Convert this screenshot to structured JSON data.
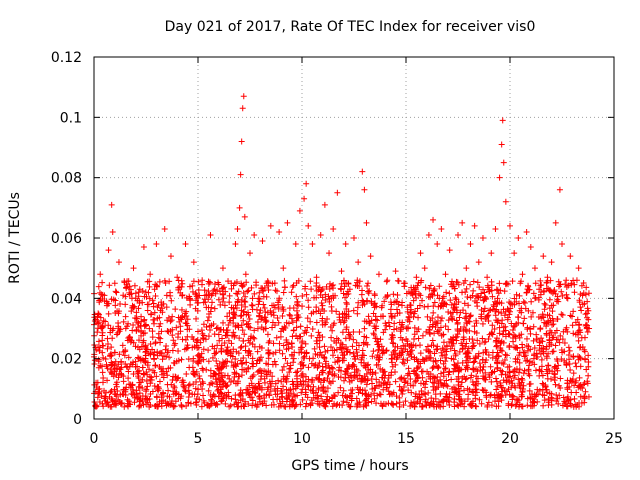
{
  "chart_data": {
    "type": "scatter",
    "title": "Day 021 of 2017, Rate Of TEC Index for receiver vis0",
    "xlabel": "GPS time / hours",
    "ylabel": "ROTI / TECUs",
    "xlim": [
      0,
      25
    ],
    "ylim": [
      0,
      0.12
    ],
    "xticks": [
      0,
      5,
      10,
      15,
      20,
      25
    ],
    "xtick_labels": [
      "0",
      "5",
      "10",
      "15",
      "20",
      "25"
    ],
    "yticks": [
      0,
      0.02,
      0.04,
      0.06,
      0.08,
      0.1,
      0.12
    ],
    "ytick_labels": [
      "0",
      "0.02",
      "0.04",
      "0.06",
      "0.08",
      "0.1",
      "0.12"
    ],
    "grid": true,
    "marker": "+",
    "color": "#ff0000",
    "series": [
      {
        "name": "ROTI",
        "points": [
          [
            0.1,
            0.012
          ],
          [
            0.2,
            0.035
          ],
          [
            0.3,
            0.048
          ],
          [
            0.4,
            0.022
          ],
          [
            0.5,
            0.041
          ],
          [
            0.6,
            0.018
          ],
          [
            0.7,
            0.056
          ],
          [
            0.8,
            0.03
          ],
          [
            0.85,
            0.071
          ],
          [
            0.9,
            0.062
          ],
          [
            1.0,
            0.045
          ],
          [
            1.1,
            0.028
          ],
          [
            1.2,
            0.052
          ],
          [
            1.3,
            0.015
          ],
          [
            1.5,
            0.038
          ],
          [
            1.6,
            0.044
          ],
          [
            1.8,
            0.026
          ],
          [
            1.9,
            0.05
          ],
          [
            2.0,
            0.019
          ],
          [
            2.2,
            0.043
          ],
          [
            2.4,
            0.057
          ],
          [
            2.5,
            0.031
          ],
          [
            2.7,
            0.048
          ],
          [
            2.9,
            0.022
          ],
          [
            3.0,
            0.058
          ],
          [
            3.2,
            0.036
          ],
          [
            3.4,
            0.063
          ],
          [
            3.5,
            0.041
          ],
          [
            3.7,
            0.054
          ],
          [
            3.9,
            0.025
          ],
          [
            4.0,
            0.047
          ],
          [
            4.2,
            0.033
          ],
          [
            4.4,
            0.058
          ],
          [
            4.6,
            0.04
          ],
          [
            4.8,
            0.052
          ],
          [
            5.0,
            0.029
          ],
          [
            5.2,
            0.046
          ],
          [
            5.4,
            0.037
          ],
          [
            5.6,
            0.061
          ],
          [
            5.8,
            0.043
          ],
          [
            6.0,
            0.028
          ],
          [
            6.2,
            0.05
          ],
          [
            6.4,
            0.034
          ],
          [
            6.6,
            0.045
          ],
          [
            6.8,
            0.058
          ],
          [
            6.9,
            0.063
          ],
          [
            7.0,
            0.07
          ],
          [
            7.05,
            0.081
          ],
          [
            7.1,
            0.092
          ],
          [
            7.15,
            0.103
          ],
          [
            7.2,
            0.107
          ],
          [
            7.25,
            0.067
          ],
          [
            7.3,
            0.048
          ],
          [
            7.5,
            0.055
          ],
          [
            7.7,
            0.061
          ],
          [
            7.9,
            0.04
          ],
          [
            8.1,
            0.059
          ],
          [
            8.3,
            0.045
          ],
          [
            8.5,
            0.064
          ],
          [
            8.7,
            0.037
          ],
          [
            8.9,
            0.062
          ],
          [
            9.1,
            0.05
          ],
          [
            9.3,
            0.065
          ],
          [
            9.5,
            0.042
          ],
          [
            9.7,
            0.058
          ],
          [
            9.9,
            0.069
          ],
          [
            10.1,
            0.073
          ],
          [
            10.2,
            0.078
          ],
          [
            10.3,
            0.064
          ],
          [
            10.5,
            0.058
          ],
          [
            10.7,
            0.047
          ],
          [
            10.9,
            0.061
          ],
          [
            11.1,
            0.071
          ],
          [
            11.3,
            0.055
          ],
          [
            11.5,
            0.063
          ],
          [
            11.7,
            0.075
          ],
          [
            11.9,
            0.049
          ],
          [
            12.1,
            0.058
          ],
          [
            12.3,
            0.043
          ],
          [
            12.5,
            0.06
          ],
          [
            12.7,
            0.052
          ],
          [
            12.9,
            0.082
          ],
          [
            13.0,
            0.076
          ],
          [
            13.1,
            0.065
          ],
          [
            13.3,
            0.054
          ],
          [
            13.5,
            0.041
          ],
          [
            13.7,
            0.048
          ],
          [
            13.9,
            0.034
          ],
          [
            14.1,
            0.046
          ],
          [
            14.3,
            0.038
          ],
          [
            14.5,
            0.049
          ],
          [
            14.7,
            0.032
          ],
          [
            14.9,
            0.045
          ],
          [
            15.1,
            0.03
          ],
          [
            15.3,
            0.042
          ],
          [
            15.5,
            0.047
          ],
          [
            15.7,
            0.055
          ],
          [
            15.9,
            0.05
          ],
          [
            16.1,
            0.061
          ],
          [
            16.3,
            0.066
          ],
          [
            16.5,
            0.058
          ],
          [
            16.7,
            0.063
          ],
          [
            16.9,
            0.048
          ],
          [
            17.1,
            0.056
          ],
          [
            17.3,
            0.044
          ],
          [
            17.5,
            0.061
          ],
          [
            17.7,
            0.065
          ],
          [
            17.9,
            0.05
          ],
          [
            18.1,
            0.058
          ],
          [
            18.3,
            0.064
          ],
          [
            18.5,
            0.052
          ],
          [
            18.7,
            0.06
          ],
          [
            18.9,
            0.047
          ],
          [
            19.1,
            0.055
          ],
          [
            19.3,
            0.063
          ],
          [
            19.5,
            0.08
          ],
          [
            19.6,
            0.091
          ],
          [
            19.65,
            0.099
          ],
          [
            19.7,
            0.085
          ],
          [
            19.8,
            0.072
          ],
          [
            20.0,
            0.064
          ],
          [
            20.2,
            0.055
          ],
          [
            20.4,
            0.06
          ],
          [
            20.6,
            0.048
          ],
          [
            20.8,
            0.062
          ],
          [
            21.0,
            0.057
          ],
          [
            21.2,
            0.05
          ],
          [
            21.4,
            0.043
          ],
          [
            21.6,
            0.054
          ],
          [
            21.8,
            0.047
          ],
          [
            22.0,
            0.052
          ],
          [
            22.2,
            0.065
          ],
          [
            22.4,
            0.076
          ],
          [
            22.5,
            0.058
          ],
          [
            22.7,
            0.046
          ],
          [
            22.9,
            0.054
          ],
          [
            23.1,
            0.042
          ],
          [
            23.3,
            0.05
          ],
          [
            23.5,
            0.038
          ],
          [
            23.7,
            0.035
          ],
          [
            23.8,
            0.03
          ]
        ]
      }
    ],
    "dense_band": {
      "note": "dense cloud of points between roughly 0.005 and 0.045 TECUs across 0–23.8 h",
      "x_range": [
        0,
        23.8
      ],
      "y_range": [
        0.004,
        0.046
      ]
    }
  }
}
